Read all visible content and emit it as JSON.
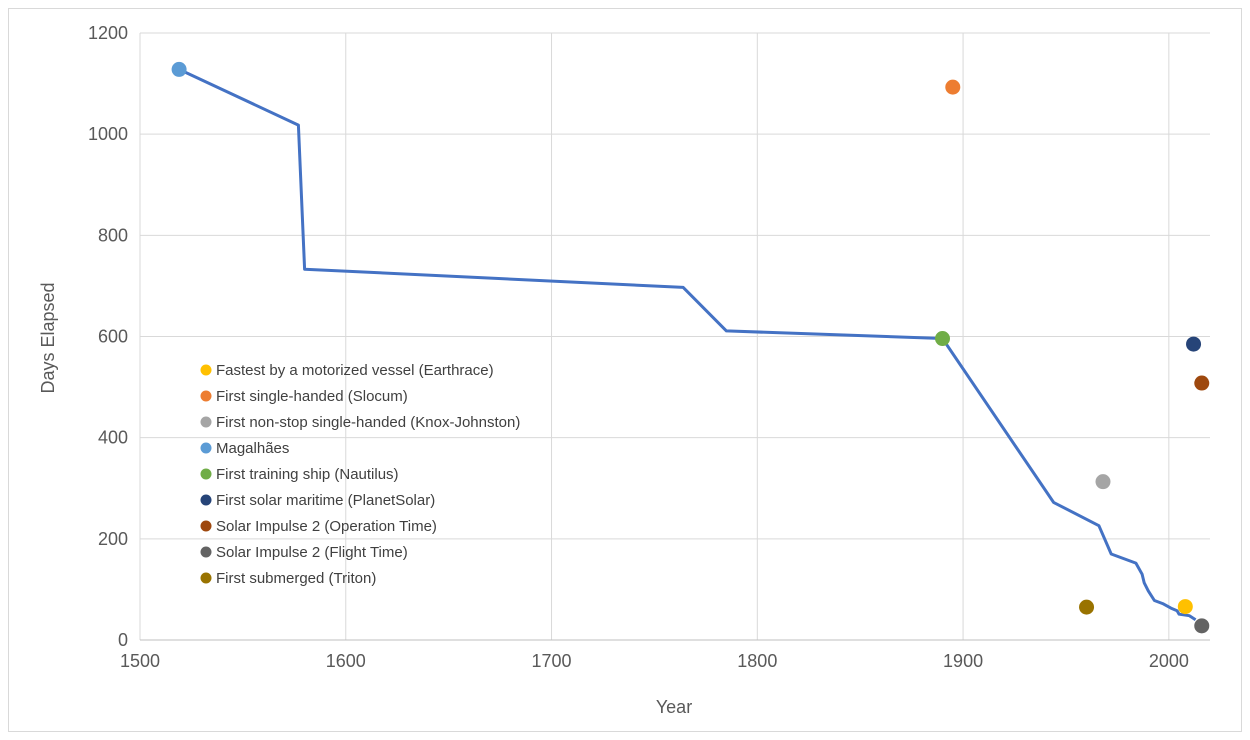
{
  "chart_data": {
    "type": "scatter",
    "title": "",
    "xlabel": "Year",
    "ylabel": "Days Elapsed",
    "xlim": [
      1500,
      2020
    ],
    "ylim": [
      0,
      1200
    ],
    "xticks": [
      1500,
      1600,
      1700,
      1800,
      1900,
      2000
    ],
    "yticks": [
      0,
      200,
      400,
      600,
      800,
      1000,
      1200
    ],
    "grid": true,
    "legend_position": "left",
    "line": {
      "color": "#4472c4",
      "points": [
        [
          1519,
          1128
        ],
        [
          1577,
          1018
        ],
        [
          1580,
          733
        ],
        [
          1764,
          697
        ],
        [
          1785,
          611
        ],
        [
          1890,
          596
        ],
        [
          1944,
          272
        ],
        [
          1966,
          226
        ],
        [
          1972,
          170
        ],
        [
          1984,
          152
        ],
        [
          1987,
          130
        ],
        [
          1988,
          113
        ],
        [
          1990,
          97
        ],
        [
          1993,
          78
        ],
        [
          1997,
          72
        ],
        [
          2001,
          63
        ],
        [
          2004,
          58
        ],
        [
          2005,
          51
        ],
        [
          2010,
          48
        ],
        [
          2013,
          40
        ]
      ]
    },
    "series": [
      {
        "name": "Fastest by a motorized vessel (Earthrace)",
        "color": "#ffc000",
        "x": 2008,
        "y": 66
      },
      {
        "name": "First single-handed (Slocum)",
        "color": "#ed7d31",
        "x": 1895,
        "y": 1093
      },
      {
        "name": "First non-stop single-handed (Knox-Johnston)",
        "color": "#a5a5a5",
        "x": 1968,
        "y": 313
      },
      {
        "name": "Magalhães",
        "color": "#5b9bd5",
        "x": 1519,
        "y": 1128
      },
      {
        "name": "First training ship (Nautilus)",
        "color": "#70ad47",
        "x": 1890,
        "y": 596
      },
      {
        "name": "First solar maritime (PlanetSolar)",
        "color": "#264478",
        "x": 2012,
        "y": 585
      },
      {
        "name": "Solar Impulse 2 (Operation Time)",
        "color": "#9e480e",
        "x": 2016,
        "y": 508
      },
      {
        "name": "Solar Impulse 2 (Flight Time)",
        "color": "#636363",
        "x": 2016,
        "y": 28
      },
      {
        "name": "First submerged (Triton)",
        "color": "#997300",
        "x": 1960,
        "y": 65
      }
    ]
  }
}
